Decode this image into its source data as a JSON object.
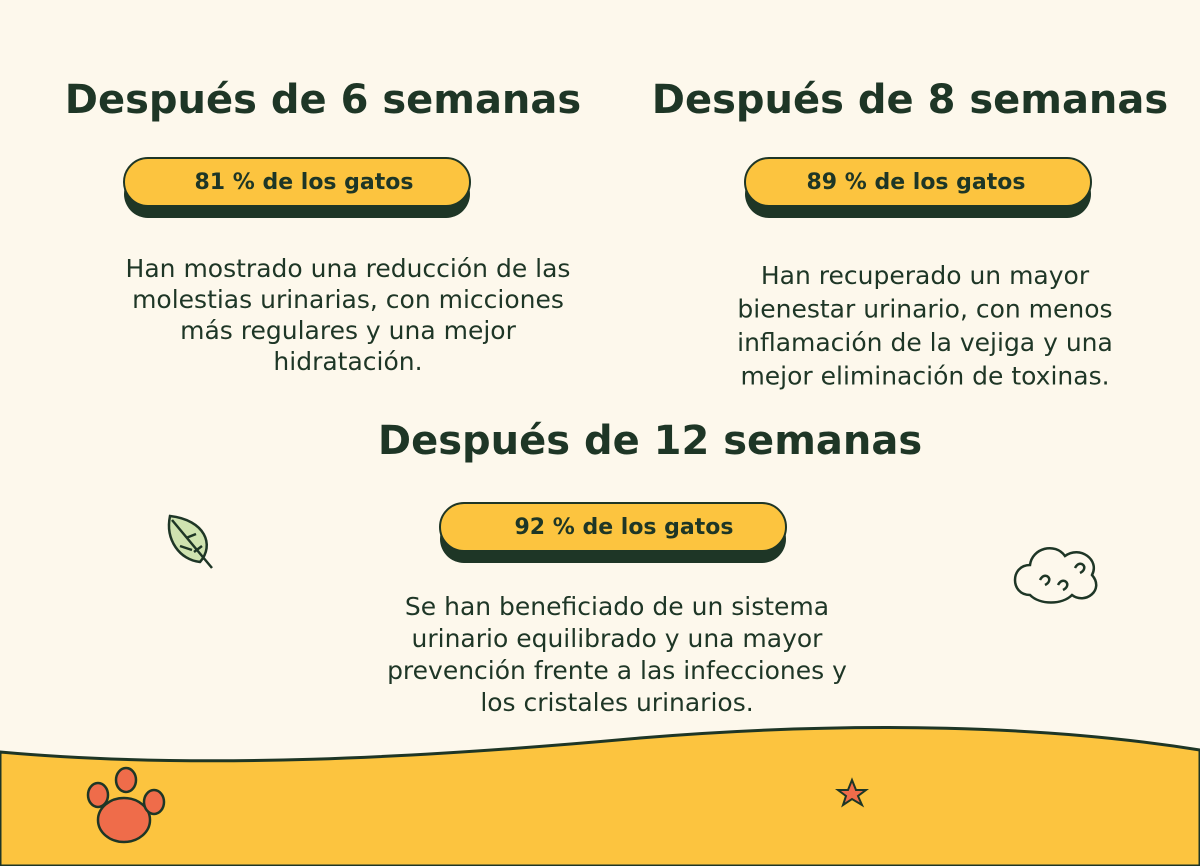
{
  "sections": [
    {
      "title": "Después de 6 semanas",
      "badge": "81 % de los gatos",
      "text": [
        "Han mostrado una reducción de las",
        "molestias urinarias, con micciones",
        "más regulares y una mejor",
        "hidratación."
      ]
    },
    {
      "title": "Después de 8 semanas",
      "badge": "89 % de los gatos",
      "text": [
        "Han recuperado un mayor",
        "bienestar urinario, con menos",
        "inflamación de la vejiga y una",
        "mejor eliminación de toxinas."
      ]
    },
    {
      "title": "Después de 12 semanas",
      "badge": "92 % de los gatos",
      "text": [
        "Se han beneficiado de un sistema",
        "urinario equilibrado y una mayor",
        "prevención frente a las infecciones y",
        "los cristales urinarios."
      ]
    }
  ]
}
